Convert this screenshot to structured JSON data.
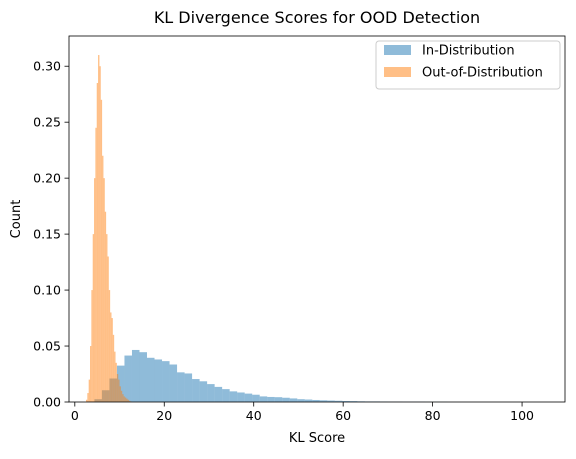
{
  "chart_data": {
    "type": "histogram",
    "title": "KL Divergence Scores for OOD Detection",
    "xlabel": "KL Score",
    "ylabel": "Count",
    "xlim": [
      -1.3,
      109.6
    ],
    "ylim": [
      0,
      0.327
    ],
    "xticks": [
      0,
      20,
      40,
      60,
      80,
      100
    ],
    "yticks": [
      0.0,
      0.05,
      0.1,
      0.15,
      0.2,
      0.25,
      0.3
    ],
    "ytick_labels": [
      "0.00",
      "0.05",
      "0.10",
      "0.15",
      "0.20",
      "0.25",
      "0.30"
    ],
    "legend": {
      "position": "upper right",
      "entries": [
        "In-Distribution",
        "Out-of-Distribution"
      ]
    },
    "series": [
      {
        "name": "In-Distribution",
        "color": "#1f77b4",
        "alpha": 0.5,
        "bin_edges": [
          2.7,
          4.38,
          6.06,
          7.74,
          9.42,
          11.1,
          12.78,
          14.46,
          16.14,
          17.82,
          19.5,
          21.18,
          22.86,
          24.54,
          26.22,
          27.9,
          29.58,
          31.26,
          32.94,
          34.62,
          36.3,
          37.98,
          39.66,
          41.34,
          43.02,
          44.7,
          46.38,
          48.06,
          49.74,
          51.42,
          53.1,
          54.78,
          56.46,
          58.14,
          59.82,
          61.5,
          63.18,
          64.86,
          66.54,
          68.22,
          69.9,
          71.58,
          73.26,
          74.94,
          76.62,
          78.3,
          79.98,
          81.66,
          83.34
        ],
        "densities": [
          0.0005,
          0.0025,
          0.0105,
          0.021,
          0.0325,
          0.0415,
          0.0465,
          0.0445,
          0.0395,
          0.038,
          0.0365,
          0.0335,
          0.0265,
          0.0255,
          0.0205,
          0.0185,
          0.016,
          0.0135,
          0.0115,
          0.0095,
          0.0085,
          0.0075,
          0.0065,
          0.005,
          0.0045,
          0.0043,
          0.0038,
          0.0032,
          0.0025,
          0.0022,
          0.0018,
          0.0015,
          0.0013,
          0.0011,
          0.0009,
          0.0008,
          0.0006,
          0.0005,
          0.0005,
          0.0004,
          0.0003,
          0.0003,
          0.0002,
          0.0002,
          0.0002,
          0.0001,
          0.0001,
          0.0001
        ]
      },
      {
        "name": "Out-of-Distribution",
        "color": "#ff7f0e",
        "alpha": 0.5,
        "bin_edges": [
          2.5,
          2.8,
          3.1,
          3.4,
          3.7,
          4.0,
          4.3,
          4.6,
          4.9,
          5.2,
          5.5,
          5.8,
          6.1,
          6.4,
          6.7,
          7.0,
          7.3,
          7.6,
          7.9,
          8.2,
          8.5,
          8.8,
          9.1,
          9.4,
          9.7,
          10.0,
          10.3,
          10.6,
          10.9,
          11.2,
          11.5,
          11.8,
          12.1,
          12.4,
          12.7
        ],
        "densities": [
          0.002,
          0.008,
          0.02,
          0.05,
          0.1,
          0.15,
          0.2,
          0.245,
          0.285,
          0.31,
          0.3,
          0.27,
          0.22,
          0.2,
          0.17,
          0.15,
          0.13,
          0.1,
          0.08,
          0.075,
          0.06,
          0.045,
          0.035,
          0.025,
          0.02,
          0.014,
          0.01,
          0.007,
          0.005,
          0.004,
          0.003,
          0.002,
          0.001,
          0.0005
        ]
      }
    ]
  }
}
